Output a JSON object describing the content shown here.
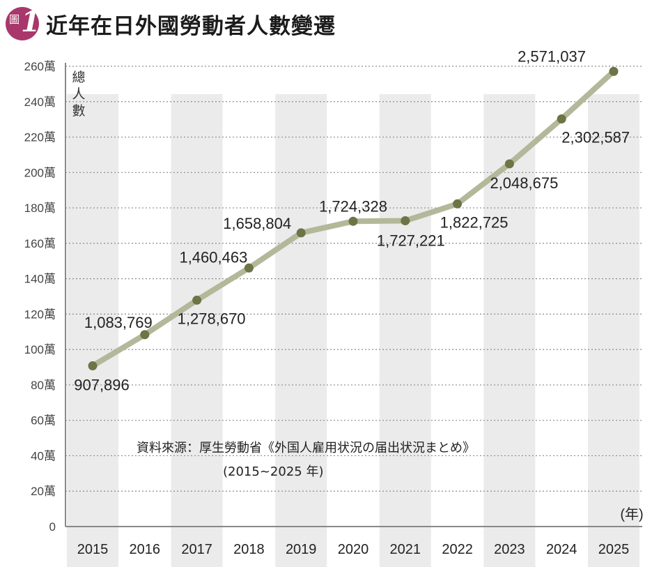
{
  "header": {
    "badge_label": "圖",
    "badge_number": "1",
    "title": "近年在日外國勞動者人數變遷"
  },
  "source": {
    "line1": "資料來源：厚生勞動省《外国人雇用状況の届出状況まとめ》",
    "line2": "(2015~2025 年)"
  },
  "colors": {
    "line": "#b4b89a",
    "marker": "#6b7545",
    "band": "#ebebeb",
    "grid": "#8a8a8a",
    "badge": "#a8386b"
  },
  "chart_data": {
    "type": "line",
    "title": "近年在日外國勞動者人數變遷",
    "ylabel": "總人數",
    "xlabel": "(年)",
    "ylim": [
      0,
      2600000
    ],
    "yticks": [
      {
        "value": 0,
        "label": "0"
      },
      {
        "value": 200000,
        "label": "20萬"
      },
      {
        "value": 400000,
        "label": "40萬"
      },
      {
        "value": 600000,
        "label": "60萬"
      },
      {
        "value": 800000,
        "label": "80萬"
      },
      {
        "value": 1000000,
        "label": "100萬"
      },
      {
        "value": 1200000,
        "label": "120萬"
      },
      {
        "value": 1400000,
        "label": "140萬"
      },
      {
        "value": 1600000,
        "label": "160萬"
      },
      {
        "value": 1800000,
        "label": "180萬"
      },
      {
        "value": 2000000,
        "label": "200萬"
      },
      {
        "value": 2200000,
        "label": "220萬"
      },
      {
        "value": 2400000,
        "label": "240萬"
      },
      {
        "value": 2600000,
        "label": "260萬"
      }
    ],
    "categories": [
      "2015",
      "2016",
      "2017",
      "2018",
      "2019",
      "2020",
      "2021",
      "2022",
      "2023",
      "2024",
      "2025"
    ],
    "values": [
      907896,
      1083769,
      1278670,
      1460463,
      1658804,
      1724328,
      1727221,
      1822725,
      2048675,
      2302587,
      2571037
    ],
    "labels": [
      "907,896",
      "1,083,769",
      "1,278,670",
      "1,460,463",
      "1,658,804",
      "1,724,328",
      "1,727,221",
      "1,822,725",
      "2,048,675",
      "2,302,587",
      "2,571,037"
    ],
    "label_positions": [
      "below",
      "above",
      "below",
      "above",
      "above",
      "above",
      "below",
      "below",
      "below",
      "below",
      "above"
    ],
    "grid": true
  }
}
